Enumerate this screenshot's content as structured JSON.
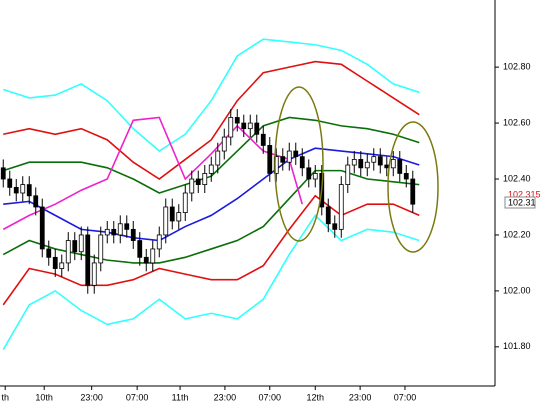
{
  "chart_data": {
    "type": "candlestick",
    "xlim": [
      -0.5,
      75.65
    ],
    "ylim": [
      101.66,
      103.04
    ],
    "yticks": [
      {
        "value": 101.8,
        "label": "101.80"
      },
      {
        "value": 102.0,
        "label": "102.00"
      },
      {
        "value": 102.2,
        "label": "102.20"
      },
      {
        "value": 102.4,
        "label": "102.40"
      },
      {
        "value": 102.6,
        "label": "102.60"
      },
      {
        "value": 102.8,
        "label": "102.80"
      }
    ],
    "xticks": [
      {
        "value": 0.3,
        "label": "th"
      },
      {
        "value": 6.3,
        "label": "10th"
      },
      {
        "value": 13.6,
        "label": "23:00"
      },
      {
        "value": 20.6,
        "label": "07:00"
      },
      {
        "value": 27.2,
        "label": "11th"
      },
      {
        "value": 34.1,
        "label": "23:00"
      },
      {
        "value": 41,
        "label": "07:00"
      },
      {
        "value": 48,
        "label": "12th"
      },
      {
        "value": 54.9,
        "label": "23:00"
      },
      {
        "value": 61.8,
        "label": "07:00"
      }
    ],
    "candles": {
      "open": [
        102.44,
        102.4,
        102.37,
        102.35,
        102.38,
        102.34,
        102.3,
        102.15,
        102.12,
        102.08,
        102.1,
        102.18,
        102.14,
        102.2,
        102.02,
        102.1,
        102.2,
        102.22,
        102.2,
        102.24,
        102.22,
        102.18,
        102.12,
        102.1,
        102.15,
        102.2,
        102.3,
        102.25,
        102.28,
        102.35,
        102.4,
        102.38,
        102.42,
        102.45,
        102.5,
        102.55,
        102.62,
        102.6,
        102.58,
        102.6,
        102.56,
        102.52,
        102.42,
        102.48,
        102.46,
        102.5,
        102.48,
        102.44,
        102.4,
        102.42,
        102.3,
        102.24,
        102.22,
        102.38,
        102.45,
        102.47,
        102.44,
        102.46,
        102.48,
        102.45,
        102.44,
        102.47,
        102.42,
        102.4
      ],
      "high": [
        102.47,
        102.43,
        102.4,
        102.41,
        102.41,
        102.37,
        102.33,
        102.18,
        102.15,
        102.13,
        102.21,
        102.21,
        102.23,
        102.23,
        102.13,
        102.23,
        102.25,
        102.25,
        102.27,
        102.27,
        102.25,
        102.21,
        102.15,
        102.18,
        102.23,
        102.33,
        102.33,
        102.31,
        102.38,
        102.43,
        102.43,
        102.45,
        102.48,
        102.53,
        102.58,
        102.65,
        102.65,
        102.63,
        102.63,
        102.63,
        102.59,
        102.55,
        102.51,
        102.51,
        102.53,
        102.53,
        102.51,
        102.47,
        102.45,
        102.45,
        102.33,
        102.27,
        102.41,
        102.48,
        102.5,
        102.5,
        102.49,
        102.51,
        102.51,
        102.48,
        102.5,
        102.5,
        102.45,
        102.43
      ],
      "low": [
        102.37,
        102.34,
        102.32,
        102.32,
        102.31,
        102.27,
        102.12,
        102.09,
        102.05,
        102.05,
        102.07,
        102.11,
        102.11,
        101.99,
        101.99,
        102.07,
        102.17,
        102.17,
        102.17,
        102.19,
        102.15,
        102.09,
        102.07,
        102.07,
        102.12,
        102.17,
        102.22,
        102.22,
        102.25,
        102.32,
        102.35,
        102.35,
        102.39,
        102.42,
        102.47,
        102.52,
        102.57,
        102.55,
        102.55,
        102.53,
        102.49,
        102.39,
        102.39,
        102.43,
        102.43,
        102.45,
        102.41,
        102.37,
        102.37,
        102.27,
        102.21,
        102.19,
        102.19,
        102.35,
        102.42,
        102.41,
        102.41,
        102.43,
        102.42,
        102.41,
        102.41,
        102.39,
        102.37,
        102.28
      ],
      "close": [
        102.4,
        102.37,
        102.35,
        102.38,
        102.34,
        102.3,
        102.15,
        102.12,
        102.08,
        102.1,
        102.18,
        102.14,
        102.2,
        102.02,
        102.1,
        102.2,
        102.22,
        102.2,
        102.24,
        102.22,
        102.18,
        102.12,
        102.1,
        102.15,
        102.2,
        102.3,
        102.25,
        102.28,
        102.35,
        102.4,
        102.38,
        102.42,
        102.45,
        102.5,
        102.55,
        102.62,
        102.6,
        102.58,
        102.6,
        102.56,
        102.52,
        102.42,
        102.48,
        102.46,
        102.5,
        102.48,
        102.44,
        102.4,
        102.42,
        102.3,
        102.24,
        102.22,
        102.38,
        102.45,
        102.47,
        102.44,
        102.46,
        102.48,
        102.45,
        102.44,
        102.47,
        102.42,
        102.4,
        102.31
      ],
      "up_color": "#ffffff",
      "down_color": "#000000"
    },
    "band_x": [
      0,
      4,
      8,
      12,
      16,
      20,
      24,
      28,
      32,
      36,
      40,
      44,
      48,
      52,
      56,
      60,
      64
    ],
    "series": [
      {
        "color": "#33ffff",
        "values": [
          102.72,
          102.69,
          102.7,
          102.74,
          102.68,
          102.58,
          102.5,
          102.56,
          102.68,
          102.84,
          102.9,
          102.89,
          102.88,
          102.86,
          102.81,
          102.74,
          102.71
        ]
      },
      {
        "color": "#33ffff",
        "values": [
          101.79,
          101.95,
          102.0,
          101.93,
          101.88,
          101.9,
          101.97,
          101.9,
          101.92,
          101.9,
          101.97,
          102.13,
          102.27,
          102.18,
          102.22,
          102.21,
          102.18
        ]
      },
      {
        "color": "#e01010",
        "values": [
          102.56,
          102.58,
          102.56,
          102.58,
          102.54,
          102.46,
          102.4,
          102.47,
          102.54,
          102.68,
          102.78,
          102.8,
          102.82,
          102.81,
          102.75,
          102.69,
          102.63
        ]
      },
      {
        "color": "#e01010",
        "values": [
          101.95,
          102.08,
          102.06,
          102.02,
          102.02,
          102.04,
          102.08,
          102.06,
          102.04,
          102.04,
          102.09,
          102.22,
          102.34,
          102.27,
          102.31,
          102.31,
          102.27
        ]
      },
      {
        "color": "#0a6e0a",
        "values": [
          102.43,
          102.46,
          102.46,
          102.46,
          102.44,
          102.4,
          102.35,
          102.38,
          102.41,
          102.5,
          102.59,
          102.62,
          102.61,
          102.59,
          102.58,
          102.56,
          102.53
        ]
      },
      {
        "color": "#0a6e0a",
        "values": [
          102.13,
          102.18,
          102.15,
          102.13,
          102.11,
          102.1,
          102.1,
          102.12,
          102.15,
          102.18,
          102.23,
          102.33,
          102.43,
          102.43,
          102.4,
          102.39,
          102.38
        ]
      },
      {
        "color": "#1a1ae0",
        "values": [
          102.31,
          102.32,
          102.27,
          102.22,
          102.21,
          102.19,
          102.18,
          102.23,
          102.27,
          102.33,
          102.4,
          102.47,
          102.51,
          102.5,
          102.49,
          102.48,
          102.45
        ]
      }
    ],
    "lag_x": [
      0,
      4,
      8,
      12,
      16,
      20,
      24,
      28,
      32,
      36,
      40,
      44,
      46
    ],
    "lag": {
      "color": "#ee22cc",
      "values": [
        102.22,
        102.27,
        102.31,
        102.36,
        102.4,
        102.61,
        102.62,
        102.4,
        102.49,
        102.59,
        102.5,
        102.47,
        102.31
      ]
    },
    "ask_label": "102.315",
    "last_label": "102.31"
  }
}
